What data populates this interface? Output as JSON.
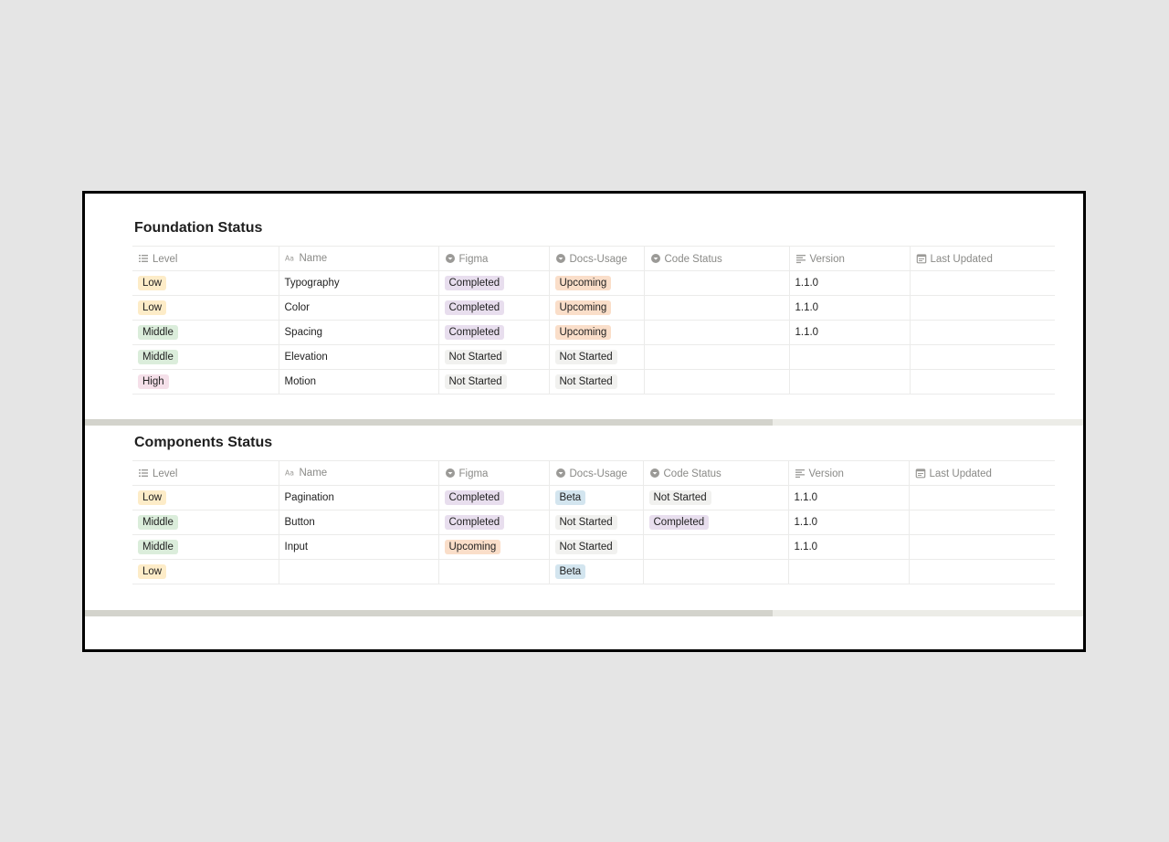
{
  "columns": [
    {
      "label": "Level",
      "icon": "list-icon"
    },
    {
      "label": "Name",
      "icon": "text-aa-icon"
    },
    {
      "label": "Figma",
      "icon": "select-icon"
    },
    {
      "label": "Docs-Usage",
      "icon": "select-icon"
    },
    {
      "label": "Code Status",
      "icon": "select-icon"
    },
    {
      "label": "Version",
      "icon": "text-lines-icon"
    },
    {
      "label": "Last Updated",
      "icon": "calendar-icon"
    }
  ],
  "tag_colors": {
    "Low": "#fdecc8",
    "Middle": "#dbeddb",
    "High": "#f5e0e9",
    "Completed": "#e8deee",
    "Upcoming": "#fadec9",
    "Not Started": "#f1f1ef",
    "Beta": "#d3e5ef"
  },
  "foundation": {
    "title": "Foundation Status",
    "rows": [
      {
        "level": "Low",
        "name": "Typography",
        "figma": "Completed",
        "docs": "Upcoming",
        "code": "",
        "version": "1.1.0",
        "updated": ""
      },
      {
        "level": "Low",
        "name": "Color",
        "figma": "Completed",
        "docs": "Upcoming",
        "code": "",
        "version": "1.1.0",
        "updated": ""
      },
      {
        "level": "Middle",
        "name": "Spacing",
        "figma": "Completed",
        "docs": "Upcoming",
        "code": "",
        "version": "1.1.0",
        "updated": ""
      },
      {
        "level": "Middle",
        "name": "Elevation",
        "figma": "Not Started",
        "docs": "Not Started",
        "code": "",
        "version": "",
        "updated": ""
      },
      {
        "level": "High",
        "name": "Motion",
        "figma": "Not Started",
        "docs": "Not Started",
        "code": "",
        "version": "",
        "updated": ""
      }
    ]
  },
  "components": {
    "title": "Components Status",
    "rows": [
      {
        "level": "Low",
        "name": "Pagination",
        "figma": "Completed",
        "docs": "Beta",
        "code": "Not Started",
        "version": "1.1.0",
        "updated": ""
      },
      {
        "level": "Middle",
        "name": "Button",
        "figma": "Completed",
        "docs": "Not Started",
        "code": "Completed",
        "version": "1.1.0",
        "updated": ""
      },
      {
        "level": "Middle",
        "name": "Input",
        "figma": "Upcoming",
        "docs": "Not Started",
        "code": "",
        "version": "1.1.0",
        "updated": ""
      },
      {
        "level": "Low",
        "name": "",
        "figma": "",
        "docs": "Beta",
        "code": "",
        "version": "",
        "updated": ""
      }
    ]
  }
}
